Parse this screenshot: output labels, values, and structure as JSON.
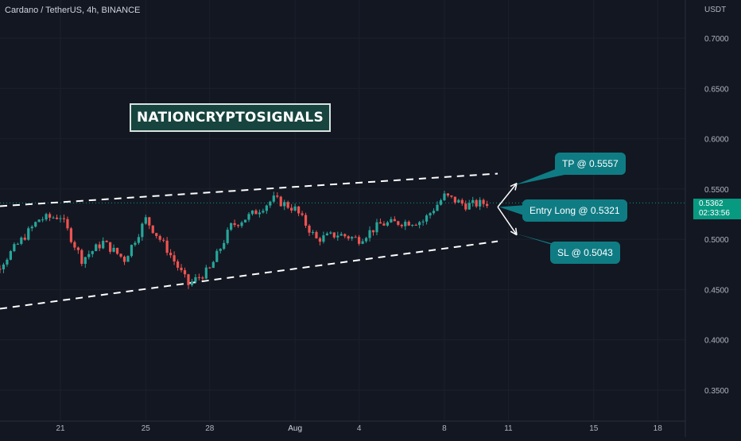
{
  "header": {
    "symbol": "Cardano / TetherUS, 4h, BINANCE"
  },
  "colors": {
    "background": "#131722",
    "up": "#26a69a",
    "down": "#ef5350",
    "callout": "#0f7c84",
    "price_tag": "#089981"
  },
  "watermark": {
    "text": "NATIONCRYPTOSIGNALS"
  },
  "annotations": {
    "tp": "TP @ 0.5557",
    "entry": "Entry Long @ 0.5321",
    "sl": "SL @ 0.5043"
  },
  "price_tag": {
    "price": "0.5362",
    "countdown": "02:33:56"
  },
  "chart_data": {
    "type": "candlestick",
    "symbol": "Cardano / TetherUS",
    "interval": "4h",
    "exchange": "BINANCE",
    "currency": "USDT",
    "y_ticks": [
      "0.7000",
      "0.6500",
      "0.6000",
      "0.5500",
      "0.5000",
      "0.4500",
      "0.4000",
      "0.3500"
    ],
    "ylim": [
      0.318,
      0.722
    ],
    "x_ticks": [
      "21",
      "25",
      "28",
      "Aug",
      "4",
      "8",
      "11",
      "15",
      "18"
    ],
    "current_price": 0.5362,
    "trade_levels": {
      "take_profit": 0.5557,
      "entry_long": 0.5321,
      "stop_loss": 0.5043
    },
    "channel": {
      "upper": [
        {
          "t": "Jul 17",
          "price": 0.5313
        },
        {
          "t": "Aug 10 12:00",
          "price": 0.5653
        }
      ],
      "lower": [
        {
          "t": "Jul 17",
          "price": 0.4276
        },
        {
          "t": "Aug 10 12:00",
          "price": 0.498
        }
      ]
    },
    "approx_close_path": [
      {
        "t": "Jul 18",
        "price": 0.47
      },
      {
        "t": "Jul 20",
        "price": 0.52
      },
      {
        "t": "Jul 21",
        "price": 0.523
      },
      {
        "t": "Jul 22",
        "price": 0.48
      },
      {
        "t": "Jul 23",
        "price": 0.497
      },
      {
        "t": "Jul 24",
        "price": 0.48
      },
      {
        "t": "Jul 25",
        "price": 0.52
      },
      {
        "t": "Jul 26",
        "price": 0.49
      },
      {
        "t": "Jul 27",
        "price": 0.455
      },
      {
        "t": "Jul 28",
        "price": 0.47
      },
      {
        "t": "Jul 29",
        "price": 0.513
      },
      {
        "t": "Jul 30",
        "price": 0.525
      },
      {
        "t": "Jul 31",
        "price": 0.54
      },
      {
        "t": "Aug 1",
        "price": 0.53
      },
      {
        "t": "Aug 2",
        "price": 0.5
      },
      {
        "t": "Aug 3",
        "price": 0.505
      },
      {
        "t": "Aug 4",
        "price": 0.5
      },
      {
        "t": "Aug 5",
        "price": 0.515
      },
      {
        "t": "Aug 6",
        "price": 0.517
      },
      {
        "t": "Aug 7",
        "price": 0.518
      },
      {
        "t": "Aug 8",
        "price": 0.543
      },
      {
        "t": "Aug 9",
        "price": 0.534
      },
      {
        "t": "Aug 10",
        "price": 0.5362
      }
    ]
  }
}
